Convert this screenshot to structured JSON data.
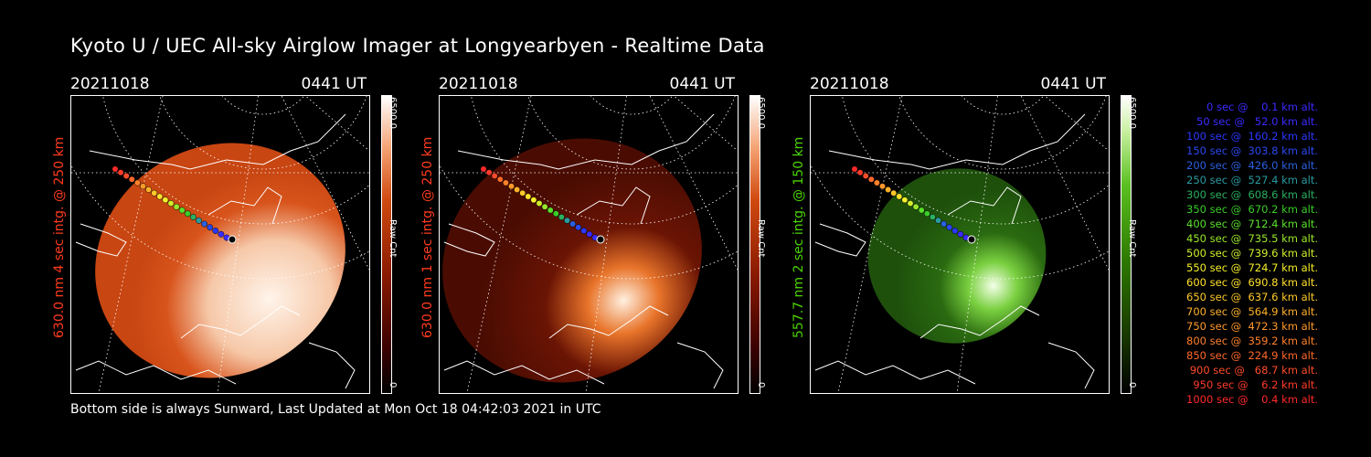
{
  "title": "Kyoto U / UEC All-sky Airglow Imager at Longyearbyen - Realtime Data",
  "footer": "Bottom side is always Sunward, Last Updated at Mon Oct 18 04:42:03 2021 in UTC",
  "panels": [
    {
      "date": "20211018",
      "time": "0441 UT",
      "ylabel": "630.0 nm 4 sec intg. @ 250 km",
      "cbar_max": "6500.0",
      "cbar_min": "0",
      "cbar_label": "Raw Cnt",
      "label_color": "#ff3b1e",
      "theme": "red-bright"
    },
    {
      "date": "20211018",
      "time": "0441 UT",
      "ylabel": "630.0 nm 1 sec intg. @ 250 km",
      "cbar_max": "6500.0",
      "cbar_min": "0",
      "cbar_label": "Raw Cnt",
      "label_color": "#ff3b1e",
      "theme": "red-dark"
    },
    {
      "date": "20211018",
      "time": "0441 UT",
      "ylabel": "557.7 nm 2 sec intg. @ 150 km",
      "cbar_max": "6500.0",
      "cbar_min": "0",
      "cbar_label": "Raw Cnt",
      "label_color": "#4cd400",
      "theme": "green"
    }
  ],
  "legend": [
    {
      "text": "0 sec @    0.1 km alt.",
      "color": "#3a2bff"
    },
    {
      "text": "50 sec @   52.0 km alt.",
      "color": "#3a2bff"
    },
    {
      "text": "100 sec @  160.2 km alt.",
      "color": "#2a38ff"
    },
    {
      "text": "150 sec @  303.8 km alt.",
      "color": "#2a48f0"
    },
    {
      "text": "200 sec @  426.0 km alt.",
      "color": "#2a60e0"
    },
    {
      "text": "250 sec @  527.4 km alt.",
      "color": "#2a9aa0"
    },
    {
      "text": "300 sec @  608.6 km alt.",
      "color": "#2ab060"
    },
    {
      "text": "350 sec @  670.2 km alt.",
      "color": "#3acc2a"
    },
    {
      "text": "400 sec @  712.4 km alt.",
      "color": "#5ae02a"
    },
    {
      "text": "450 sec @  735.5 km alt.",
      "color": "#9ae82a"
    },
    {
      "text": "500 sec @  739.6 km alt.",
      "color": "#d0ee2a"
    },
    {
      "text": "550 sec @  724.7 km alt.",
      "color": "#f4f02a"
    },
    {
      "text": "600 sec @  690.8 km alt.",
      "color": "#ffe02a"
    },
    {
      "text": "650 sec @  637.6 km alt.",
      "color": "#ffc82a"
    },
    {
      "text": "700 sec @  564.9 km alt.",
      "color": "#ffb02a"
    },
    {
      "text": "750 sec @  472.3 km alt.",
      "color": "#ff982a"
    },
    {
      "text": "800 sec @  359.2 km alt.",
      "color": "#ff802a"
    },
    {
      "text": "850 sec @  224.9 km alt.",
      "color": "#ff682a"
    },
    {
      "text": "900 sec @   68.7 km alt.",
      "color": "#ff4c2a"
    },
    {
      "text": "950 sec @    6.2 km alt.",
      "color": "#ff3a2a"
    },
    {
      "text": "1000 sec @    0.4 km alt.",
      "color": "#ff2a2a"
    }
  ]
}
